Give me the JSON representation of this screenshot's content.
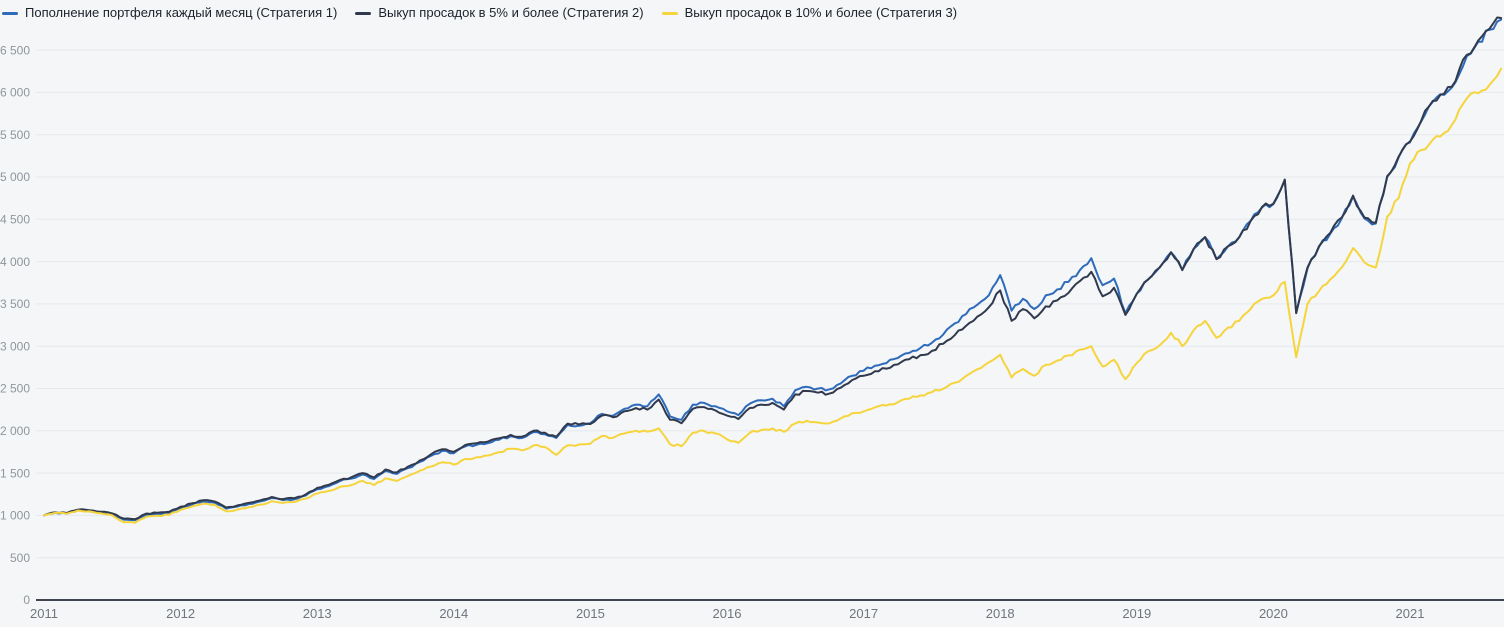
{
  "legend": {
    "items": [
      {
        "label": "Пополнение портфеля каждый месяц (Стратегия 1)",
        "color": "#2e6bbb"
      },
      {
        "label": "Выкуп просадок в 5% и более (Стратегия 2)",
        "color": "#313a4d"
      },
      {
        "label": "Выкуп просадок в 10% и более (Стратегия 3)",
        "color": "#f6d43c"
      }
    ]
  },
  "chart_data": {
    "type": "line",
    "title": "",
    "xlabel": "",
    "ylabel": "",
    "x_unit": "month",
    "x_start": "2011-01",
    "x_end": "2021-09",
    "x_tick_labels": [
      "2011",
      "2012",
      "2013",
      "2014",
      "2015",
      "2016",
      "2017",
      "2018",
      "2019",
      "2020",
      "2021"
    ],
    "y_ticks": [
      0,
      500,
      1000,
      1500,
      2000,
      2500,
      3000,
      3500,
      4000,
      4500,
      5000,
      5500,
      6000,
      6500
    ],
    "y_tick_labels": [
      "0",
      "500",
      "1 000",
      "1 500",
      "2 000",
      "2 500",
      "3 000",
      "3 500",
      "4 000",
      "4 500",
      "5 000",
      "5 500",
      "6 000",
      "6 500"
    ],
    "ylim": [
      0,
      6500
    ],
    "grid": "horizontal",
    "legend_position": "top-left",
    "series": [
      {
        "name": "Пополнение портфеля каждый месяц (Стратегия 1)",
        "color": "#2e6bbb",
        "values": [
          1000,
          1030,
          1020,
          1060,
          1050,
          1030,
          1010,
          950,
          945,
          1010,
          1020,
          1030,
          1090,
          1130,
          1165,
          1150,
          1080,
          1105,
          1135,
          1165,
          1205,
          1180,
          1190,
          1235,
          1310,
          1345,
          1405,
          1435,
          1485,
          1430,
          1525,
          1490,
          1560,
          1630,
          1705,
          1765,
          1735,
          1815,
          1835,
          1855,
          1895,
          1935,
          1915,
          1985,
          1960,
          1915,
          2070,
          2060,
          2090,
          2200,
          2180,
          2260,
          2310,
          2290,
          2430,
          2170,
          2130,
          2310,
          2330,
          2290,
          2230,
          2185,
          2320,
          2360,
          2380,
          2290,
          2480,
          2520,
          2500,
          2490,
          2560,
          2650,
          2710,
          2770,
          2800,
          2860,
          2920,
          2980,
          3040,
          3140,
          3270,
          3380,
          3490,
          3600,
          3840,
          3420,
          3560,
          3440,
          3600,
          3670,
          3760,
          3900,
          4040,
          3720,
          3800,
          3390,
          3620,
          3790,
          3930,
          4110,
          3900,
          4150,
          4290,
          4030,
          4180,
          4290,
          4480,
          4640,
          4680,
          4960,
          3400,
          3920,
          4170,
          4330,
          4510,
          4770,
          4510,
          4450,
          5000,
          5230,
          5410,
          5660,
          5890,
          5970,
          6120,
          6430,
          6600,
          6740,
          6860
        ]
      },
      {
        "name": "Выкуп просадок в 5% и более (Стратегия 2)",
        "color": "#313a4d",
        "values": [
          1000,
          1035,
          1028,
          1068,
          1060,
          1042,
          1022,
          962,
          955,
          1022,
          1032,
          1042,
          1102,
          1143,
          1178,
          1163,
          1093,
          1118,
          1148,
          1178,
          1218,
          1193,
          1203,
          1248,
          1325,
          1360,
          1420,
          1450,
          1500,
          1448,
          1542,
          1508,
          1578,
          1648,
          1722,
          1782,
          1752,
          1832,
          1852,
          1872,
          1912,
          1952,
          1932,
          2000,
          1978,
          1930,
          2085,
          2075,
          2080,
          2180,
          2160,
          2230,
          2270,
          2250,
          2370,
          2130,
          2090,
          2260,
          2280,
          2240,
          2180,
          2140,
          2270,
          2310,
          2330,
          2250,
          2430,
          2470,
          2450,
          2440,
          2510,
          2600,
          2650,
          2705,
          2735,
          2785,
          2845,
          2895,
          2945,
          3030,
          3130,
          3240,
          3350,
          3460,
          3660,
          3300,
          3440,
          3330,
          3470,
          3540,
          3630,
          3770,
          3880,
          3590,
          3690,
          3370,
          3620,
          3790,
          3930,
          4110,
          3900,
          4150,
          4290,
          4030,
          4180,
          4290,
          4480,
          4645,
          4685,
          4970,
          3390,
          3930,
          4180,
          4340,
          4520,
          4780,
          4520,
          4460,
          5010,
          5240,
          5420,
          5670,
          5900,
          5985,
          6135,
          6445,
          6615,
          6755,
          6880
        ]
      },
      {
        "name": "Выкуп просадок в 10% и более (Стратегия 3)",
        "color": "#f6d43c",
        "values": [
          1000,
          1030,
          1020,
          1058,
          1048,
          1025,
          1000,
          920,
          912,
          985,
          995,
          1008,
          1065,
          1105,
          1138,
          1125,
          1048,
          1068,
          1098,
          1128,
          1168,
          1148,
          1158,
          1198,
          1258,
          1288,
          1338,
          1358,
          1408,
          1358,
          1438,
          1408,
          1468,
          1528,
          1578,
          1628,
          1600,
          1668,
          1688,
          1708,
          1748,
          1788,
          1768,
          1828,
          1808,
          1715,
          1828,
          1838,
          1848,
          1938,
          1918,
          1968,
          2000,
          1990,
          2030,
          1840,
          1818,
          1978,
          1998,
          1968,
          1900,
          1858,
          1978,
          2008,
          2028,
          1988,
          2088,
          2118,
          2098,
          2088,
          2148,
          2208,
          2228,
          2278,
          2298,
          2338,
          2378,
          2418,
          2458,
          2498,
          2568,
          2648,
          2728,
          2808,
          2900,
          2630,
          2730,
          2650,
          2780,
          2830,
          2890,
          2960,
          3000,
          2760,
          2840,
          2610,
          2800,
          2940,
          3010,
          3160,
          3000,
          3190,
          3300,
          3100,
          3220,
          3300,
          3440,
          3560,
          3600,
          3760,
          2870,
          3500,
          3650,
          3790,
          3930,
          4160,
          3990,
          3930,
          4530,
          4750,
          5160,
          5320,
          5440,
          5520,
          5680,
          5930,
          5990,
          6090,
          6280
        ]
      }
    ],
    "colors": {
      "background": "#f4f6f8",
      "gridline": "#e6e9ed",
      "axis_line": "#3e454e",
      "y_tick_text": "#8f969c",
      "x_tick_text": "#70767c",
      "legend_text": "#1d222b"
    }
  }
}
